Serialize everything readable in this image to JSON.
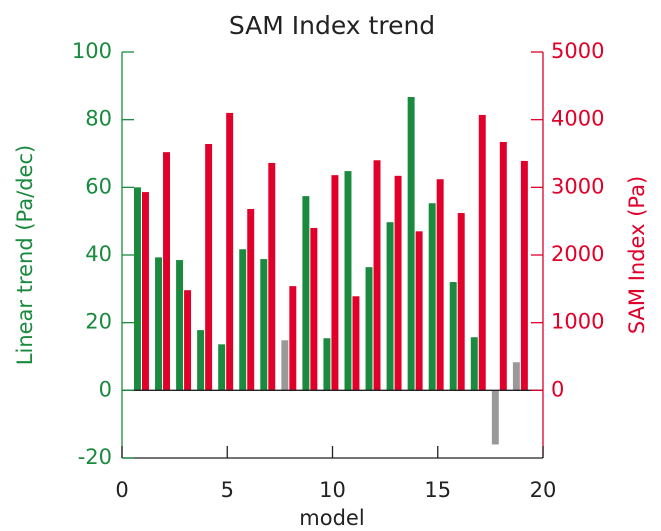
{
  "chart_data": {
    "type": "bar",
    "title": "SAM Index trend",
    "xlabel": "model",
    "ylabel": "Linear trend (Pa/dec)",
    "y2label": "SAM Index (Pa)",
    "x": [
      1,
      2,
      3,
      4,
      5,
      6,
      7,
      8,
      9,
      10,
      11,
      12,
      13,
      14,
      15,
      16,
      17,
      18,
      19
    ],
    "xlim": [
      0,
      20
    ],
    "xticks": [
      0,
      5,
      10,
      15,
      20
    ],
    "ylim": [
      -20,
      100
    ],
    "yticks": [
      -20,
      0,
      20,
      40,
      60,
      80,
      100
    ],
    "y2lim": [
      -1000,
      5000
    ],
    "y2ticks": [
      0,
      1000,
      2000,
      3000,
      4000,
      5000
    ],
    "ycolor": "#1a8a3f",
    "y2color": "#e0002a",
    "series": [
      {
        "name": "Linear trend",
        "color": "#1a8a3f",
        "colors": [
          "#1a8a3f",
          "#1a8a3f",
          "#1a8a3f",
          "#1a8a3f",
          "#1a8a3f",
          "#1a8a3f",
          "#1a8a3f",
          "#999999",
          "#1a8a3f",
          "#1a8a3f",
          "#1a8a3f",
          "#1a8a3f",
          "#1a8a3f",
          "#1a8a3f",
          "#1a8a3f",
          "#1a8a3f",
          "#1a8a3f",
          "#999999",
          "#999999"
        ],
        "values": [
          60,
          39.3,
          38.5,
          17.8,
          13.6,
          41.7,
          38.8,
          14.8,
          57.4,
          15.4,
          64.8,
          36.4,
          49.7,
          86.7,
          55.3,
          32,
          15.7,
          -16,
          8.3
        ]
      },
      {
        "name": "SAM Index",
        "color": "#e0002a",
        "axis": "y2",
        "values": [
          2930,
          3520,
          1480,
          3640,
          4100,
          2680,
          3360,
          1540,
          2400,
          3180,
          1390,
          3400,
          3170,
          2350,
          3120,
          2620,
          4070,
          3670,
          3390
        ]
      }
    ]
  }
}
